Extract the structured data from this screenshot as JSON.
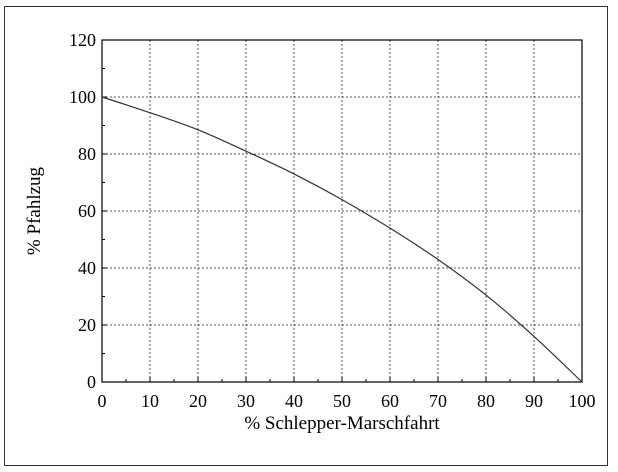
{
  "chart_data": {
    "type": "line",
    "title": "",
    "xlabel": "% Schlepper-Marschfahrt",
    "ylabel": "% Pfahlzug",
    "xlim": [
      0,
      100
    ],
    "ylim": [
      0,
      120
    ],
    "x_ticks": [
      "0",
      "10",
      "20",
      "30",
      "40",
      "50",
      "60",
      "70",
      "80",
      "90",
      "100"
    ],
    "y_ticks": [
      "0",
      "20",
      "40",
      "60",
      "80",
      "100",
      "120"
    ],
    "grid": true,
    "series": [
      {
        "x": [
          0,
          10,
          20,
          30,
          40,
          50,
          60,
          70,
          80,
          90,
          100
        ],
        "y": [
          100,
          94.5,
          88.5,
          81,
          73,
          64,
          54,
          43,
          30.5,
          16,
          0
        ]
      }
    ]
  }
}
